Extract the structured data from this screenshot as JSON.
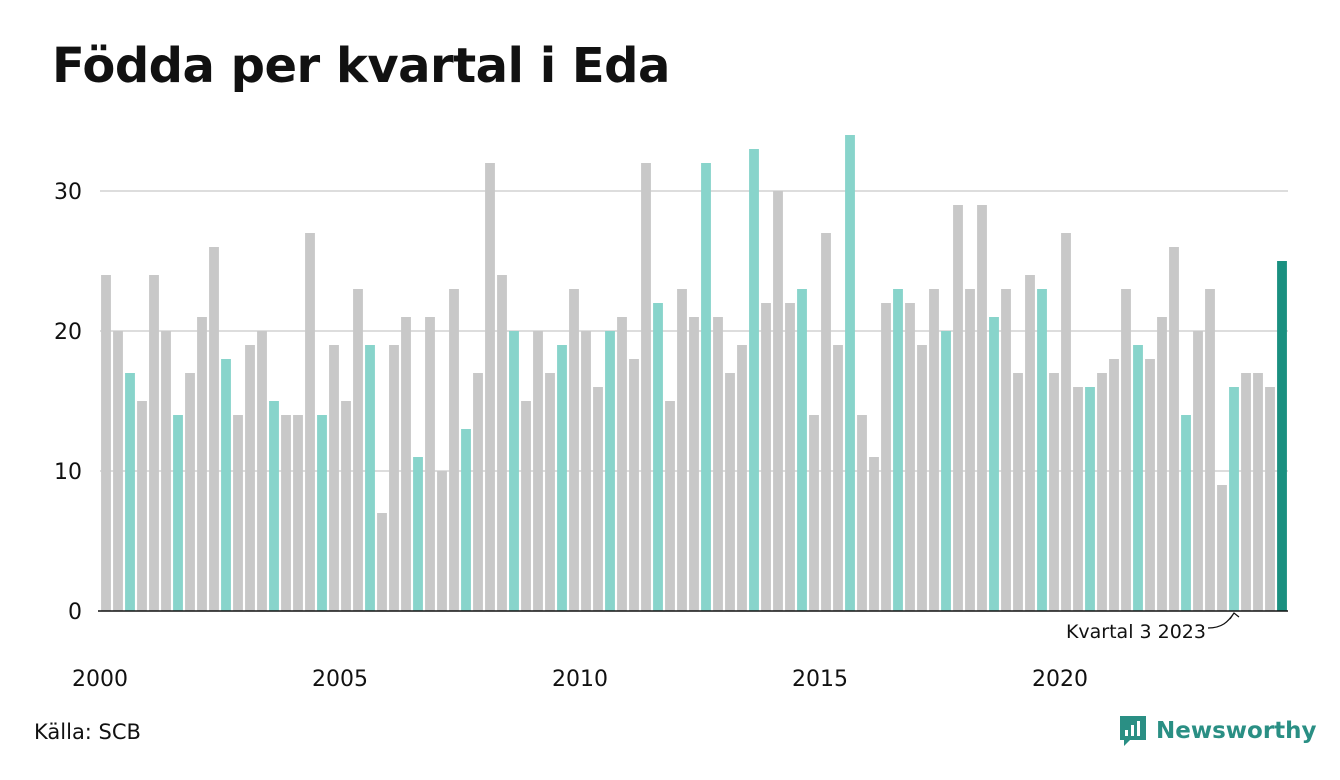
{
  "title": "Födda per kvartal i Eda",
  "source": "Källa: SCB",
  "brand": {
    "name": "Newsworthy",
    "icon": "newsworthy-chart-bubble-icon"
  },
  "colors": {
    "base": "#c8c8c8",
    "highlight": "#88d4cb",
    "latest": "#1a9080",
    "grid": "#dddddd",
    "axis": "#111111"
  },
  "annotation": {
    "text": "Kvartal 3 2023"
  },
  "chart_data": {
    "type": "bar",
    "title": "Födda per kvartal i Eda",
    "xlabel": "",
    "ylabel": "",
    "ylim": [
      0,
      35
    ],
    "y_ticks": [
      0,
      10,
      20,
      30
    ],
    "x_tick_labels": [
      "2000",
      "2005",
      "2010",
      "2015",
      "2020"
    ],
    "grid": true,
    "legend": "none",
    "values": [
      24,
      20,
      17,
      15,
      24,
      20,
      14,
      17,
      21,
      26,
      18,
      14,
      19,
      20,
      15,
      14,
      14,
      27,
      14,
      19,
      15,
      23,
      19,
      7,
      19,
      21,
      11,
      21,
      10,
      23,
      13,
      17,
      32,
      24,
      20,
      15,
      20,
      17,
      19,
      23,
      20,
      16,
      20,
      21,
      18,
      32,
      22,
      15,
      23,
      21,
      32,
      21,
      17,
      19,
      33,
      22,
      30,
      22,
      23,
      14,
      27,
      19,
      34,
      14,
      11,
      22,
      23,
      22,
      19,
      23,
      20,
      29,
      23,
      29,
      21,
      23,
      17,
      24,
      23,
      17,
      27,
      16,
      16,
      17,
      18,
      23,
      19,
      18,
      21,
      26,
      14,
      20,
      23,
      9,
      16,
      17,
      17,
      16,
      25
    ],
    "highlight_every": 4,
    "highlight_offset": 2,
    "latest_index": 98,
    "annotated_index": 94
  }
}
